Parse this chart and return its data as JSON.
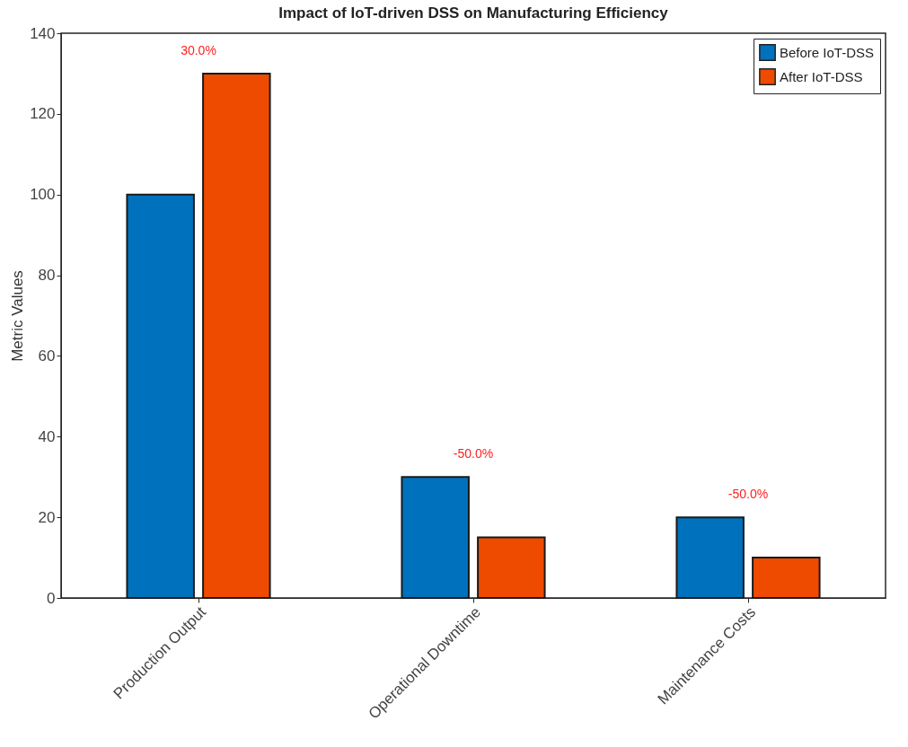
{
  "chart_data": {
    "type": "bar",
    "title": "Impact of IoT-driven DSS on Manufacturing Efficiency",
    "ylabel": "Metric Values",
    "categories": [
      "Production Output",
      "Operational Downtime",
      "Maintenance Costs"
    ],
    "series": [
      {
        "name": "Before IoT-DSS",
        "color": "#0072bd",
        "values": [
          100,
          30,
          20
        ]
      },
      {
        "name": "After IoT-DSS",
        "color": "#ee4a00",
        "values": [
          130,
          15,
          10
        ]
      }
    ],
    "ylim": [
      0,
      140
    ],
    "yticks": [
      0,
      20,
      40,
      60,
      80,
      100,
      120,
      140
    ],
    "legend": "top right",
    "annotations": [
      "30.0%",
      "-50.0%",
      "-50.0%"
    ]
  }
}
